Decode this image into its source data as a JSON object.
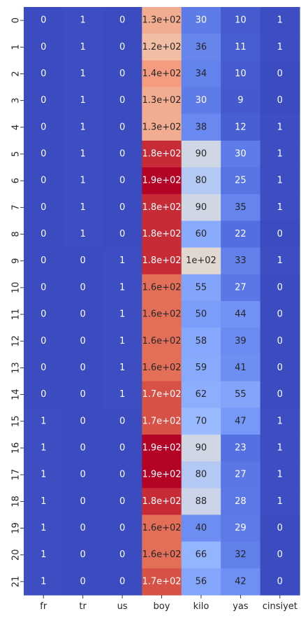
{
  "chart_data": {
    "type": "heatmap",
    "colormap": "coolwarm",
    "columns": [
      "fr",
      "tr",
      "us",
      "boy",
      "kilo",
      "yas",
      "cinsiyet"
    ],
    "rows": [
      "0",
      "1",
      "2",
      "3",
      "4",
      "5",
      "6",
      "7",
      "8",
      "9",
      "10",
      "11",
      "12",
      "13",
      "14",
      "15",
      "16",
      "17",
      "18",
      "19",
      "20",
      "21"
    ],
    "values": [
      [
        0,
        1,
        0,
        130,
        30,
        10,
        1
      ],
      [
        0,
        1,
        0,
        120,
        36,
        11,
        1
      ],
      [
        0,
        1,
        0,
        140,
        34,
        10,
        0
      ],
      [
        0,
        1,
        0,
        130,
        30,
        9,
        0
      ],
      [
        0,
        1,
        0,
        130,
        38,
        12,
        1
      ],
      [
        0,
        1,
        0,
        180,
        90,
        30,
        1
      ],
      [
        0,
        1,
        0,
        190,
        80,
        25,
        1
      ],
      [
        0,
        1,
        0,
        180,
        90,
        35,
        1
      ],
      [
        0,
        1,
        0,
        180,
        60,
        22,
        0
      ],
      [
        0,
        0,
        1,
        180,
        100,
        33,
        1
      ],
      [
        0,
        0,
        1,
        160,
        55,
        27,
        0
      ],
      [
        0,
        0,
        1,
        160,
        50,
        44,
        0
      ],
      [
        0,
        0,
        1,
        160,
        58,
        39,
        0
      ],
      [
        0,
        0,
        1,
        160,
        59,
        41,
        0
      ],
      [
        0,
        0,
        1,
        170,
        62,
        55,
        0
      ],
      [
        1,
        0,
        0,
        170,
        70,
        47,
        1
      ],
      [
        1,
        0,
        0,
        190,
        90,
        23,
        1
      ],
      [
        1,
        0,
        0,
        190,
        80,
        27,
        1
      ],
      [
        1,
        0,
        0,
        180,
        88,
        28,
        1
      ],
      [
        1,
        0,
        0,
        160,
        40,
        29,
        0
      ],
      [
        1,
        0,
        0,
        160,
        66,
        32,
        0
      ],
      [
        1,
        0,
        0,
        170,
        56,
        42,
        0
      ]
    ],
    "labels": [
      [
        "0",
        "1",
        "0",
        "1.3e+02",
        "30",
        "10",
        "1"
      ],
      [
        "0",
        "1",
        "0",
        "1.2e+02",
        "36",
        "11",
        "1"
      ],
      [
        "0",
        "1",
        "0",
        "1.4e+02",
        "34",
        "10",
        "0"
      ],
      [
        "0",
        "1",
        "0",
        "1.3e+02",
        "30",
        "9",
        "0"
      ],
      [
        "0",
        "1",
        "0",
        "1.3e+02",
        "38",
        "12",
        "1"
      ],
      [
        "0",
        "1",
        "0",
        "1.8e+02",
        "90",
        "30",
        "1"
      ],
      [
        "0",
        "1",
        "0",
        "1.9e+02",
        "80",
        "25",
        "1"
      ],
      [
        "0",
        "1",
        "0",
        "1.8e+02",
        "90",
        "35",
        "1"
      ],
      [
        "0",
        "1",
        "0",
        "1.8e+02",
        "60",
        "22",
        "0"
      ],
      [
        "0",
        "0",
        "1",
        "1.8e+02",
        "1e+02",
        "33",
        "1"
      ],
      [
        "0",
        "0",
        "1",
        "1.6e+02",
        "55",
        "27",
        "0"
      ],
      [
        "0",
        "0",
        "1",
        "1.6e+02",
        "50",
        "44",
        "0"
      ],
      [
        "0",
        "0",
        "1",
        "1.6e+02",
        "58",
        "39",
        "0"
      ],
      [
        "0",
        "0",
        "1",
        "1.6e+02",
        "59",
        "41",
        "0"
      ],
      [
        "0",
        "0",
        "1",
        "1.7e+02",
        "62",
        "55",
        "0"
      ],
      [
        "1",
        "0",
        "0",
        "1.7e+02",
        "70",
        "47",
        "1"
      ],
      [
        "1",
        "0",
        "0",
        "1.9e+02",
        "90",
        "23",
        "1"
      ],
      [
        "1",
        "0",
        "0",
        "1.9e+02",
        "80",
        "27",
        "1"
      ],
      [
        "1",
        "0",
        "0",
        "1.8e+02",
        "88",
        "28",
        "1"
      ],
      [
        "1",
        "0",
        "0",
        "1.6e+02",
        "40",
        "29",
        "0"
      ],
      [
        "1",
        "0",
        "0",
        "1.6e+02",
        "66",
        "32",
        "0"
      ],
      [
        "1",
        "0",
        "0",
        "1.7e+02",
        "56",
        "42",
        "0"
      ]
    ],
    "vmin": 0,
    "vmax": 190,
    "colorbar": false,
    "title": "",
    "xlabel": "",
    "ylabel": ""
  }
}
